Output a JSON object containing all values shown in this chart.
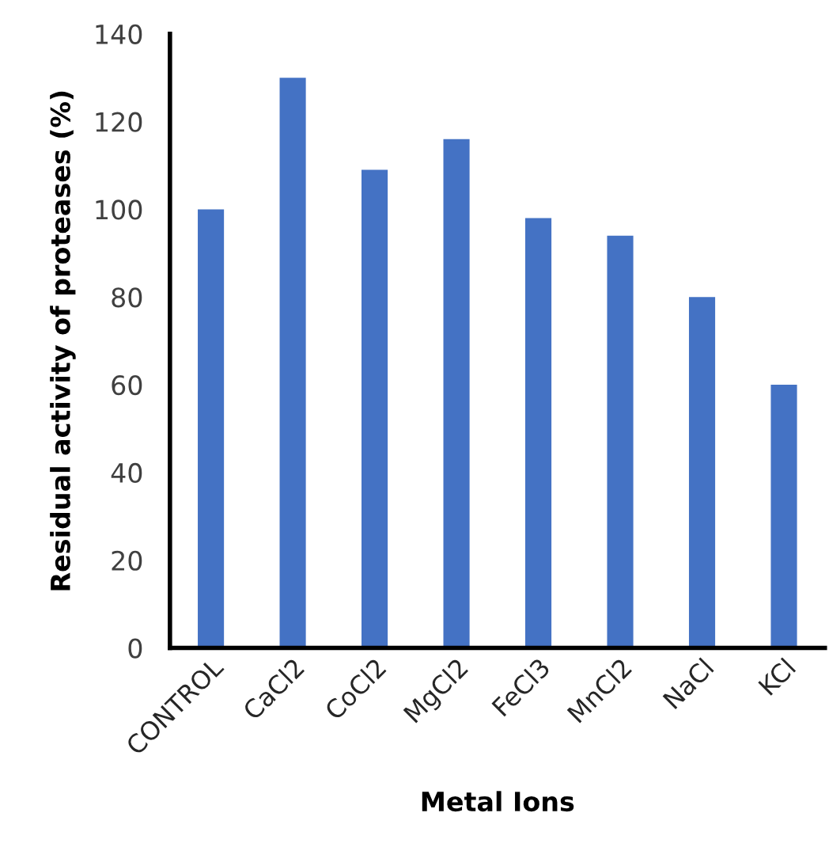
{
  "chart_data": {
    "type": "bar",
    "xlabel": "Metal Ions",
    "ylabel": "Residual activity of proteases (%)",
    "categories": [
      "CONTROL",
      "CaCl2",
      "CoCl2",
      "MgCl2",
      "FeCl3",
      "MnCl2",
      "NaCl",
      "KCl"
    ],
    "values": [
      100,
      130,
      109,
      116,
      98,
      94,
      80,
      60
    ],
    "color": "#4472c4",
    "ylim": [
      0,
      140
    ],
    "yticks": [
      0,
      20,
      40,
      60,
      80,
      100,
      120,
      140
    ],
    "grid": false,
    "legend": false
  }
}
